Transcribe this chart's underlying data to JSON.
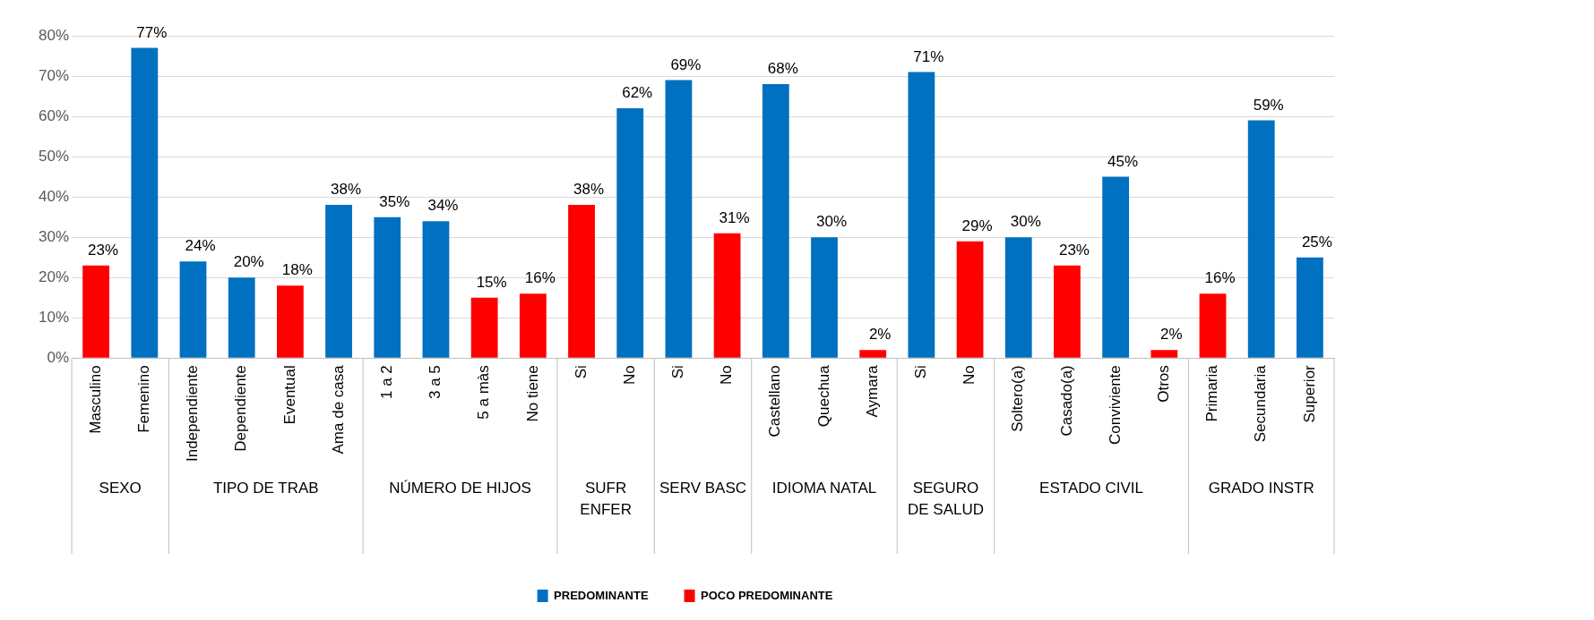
{
  "chart_data": {
    "type": "bar",
    "categories": [
      "Masculino",
      "Femenino",
      "Independiente",
      "Dependiente",
      "Eventual",
      "Ama de casa",
      "1 a 2",
      "3 a 5",
      "5 a màs",
      "No tiene",
      "Si",
      "No",
      "Si",
      "No",
      "Castellano",
      "Quechua",
      "Aymara",
      "Si",
      "No",
      "Soltero(a)",
      "Casado(a)",
      "Conviviente",
      "Otros",
      "Primaria",
      "Secundaria",
      "Superior"
    ],
    "series": [
      {
        "name": "PREDOMINANTE",
        "color": "#0070c0",
        "values": [
          null,
          77,
          24,
          20,
          null,
          38,
          35,
          34,
          null,
          null,
          null,
          62,
          69,
          null,
          68,
          30,
          null,
          71,
          null,
          30,
          null,
          45,
          null,
          null,
          59,
          25
        ],
        "value_labels": [
          null,
          "77%",
          "24%",
          "20%",
          null,
          "38%",
          "35%",
          "34%",
          null,
          null,
          null,
          "62%",
          "69%",
          null,
          "68%",
          "30%",
          null,
          "71%",
          null,
          "30%",
          null,
          "45%",
          null,
          null,
          "59%",
          "25%"
        ]
      },
      {
        "name": "POCO PREDOMINANTE",
        "color": "#ff0000",
        "values": [
          23,
          null,
          null,
          null,
          18,
          null,
          null,
          null,
          15,
          16,
          38,
          null,
          null,
          31,
          null,
          null,
          2,
          null,
          29,
          null,
          23,
          null,
          2,
          16,
          null,
          null
        ],
        "value_labels": [
          "23%",
          null,
          null,
          null,
          "18%",
          null,
          null,
          null,
          "15%",
          "16%",
          "38%",
          null,
          null,
          "31%",
          null,
          null,
          "2%",
          null,
          "29%",
          null,
          "23%",
          null,
          "2%",
          "16%",
          null,
          null
        ]
      }
    ],
    "ylim": [
      0,
      80
    ],
    "yticks": [
      {
        "value": 0,
        "label": "0%"
      },
      {
        "value": 10,
        "label": "10%"
      },
      {
        "value": 20,
        "label": "20%"
      },
      {
        "value": 30,
        "label": "30%"
      },
      {
        "value": 40,
        "label": "40%"
      },
      {
        "value": 50,
        "label": "50%"
      },
      {
        "value": 60,
        "label": "60%"
      },
      {
        "value": 70,
        "label": "70%"
      },
      {
        "value": 80,
        "label": "80%"
      }
    ],
    "grid": "y",
    "legend": "bottom",
    "annotations": [
      "SEXO",
      "TIPO DE TRAB",
      "NÚMERO DE HIJOS",
      "SUFR ENFER",
      "SERV BASC",
      "IDIOMA NATAL",
      "SEGURO DE SALUD",
      "ESTADO CIVIL",
      "GRADO INSTR"
    ]
  }
}
